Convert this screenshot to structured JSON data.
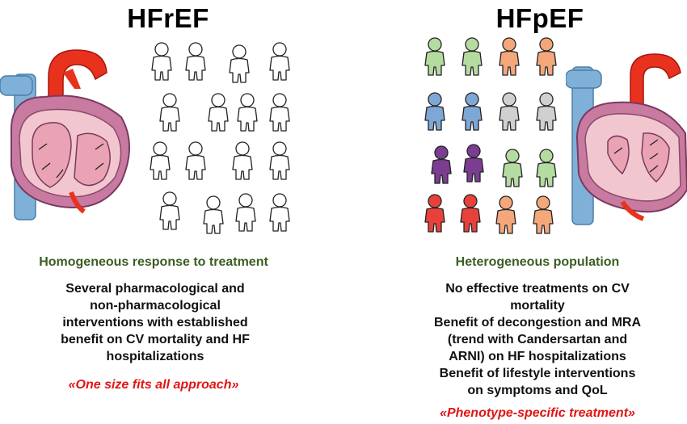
{
  "left": {
    "title": "HFrEF",
    "subheading": "Homogeneous response to treatment",
    "lines": [
      "Several pharmacological and",
      "non-pharmacological",
      "interventions with established",
      "benefit on CV mortality and HF",
      "hospitalizations"
    ],
    "tagline": "«One size fits all approach»",
    "people_color": "#ffffff"
  },
  "right": {
    "title": "HFpEF",
    "subheading": "Heterogeneous population",
    "lines": [
      "No effective treatments on CV",
      "mortality",
      "Benefit of decongestion and MRA",
      "(trend with Candersartan and",
      "ARNI) on HF hospitalizations",
      "Benefit of lifestyle interventions",
      "on symptoms and QoL"
    ],
    "tagline": "«Phenotype-specific treatment»",
    "people_colors": [
      "#b5dca0",
      "#6f6fa8",
      "#d0d0d0",
      "#f3a77a",
      "#e8413c",
      "#7fa7d6",
      "#7b3d91"
    ]
  },
  "colors": {
    "subheading": "#3a5e22",
    "tagline": "#e11414",
    "aorta": "#e8321e",
    "vena_cava": "#7fb0d8",
    "heart_wall": "#f2c6cf",
    "heart_outer": "#c97aa0"
  }
}
